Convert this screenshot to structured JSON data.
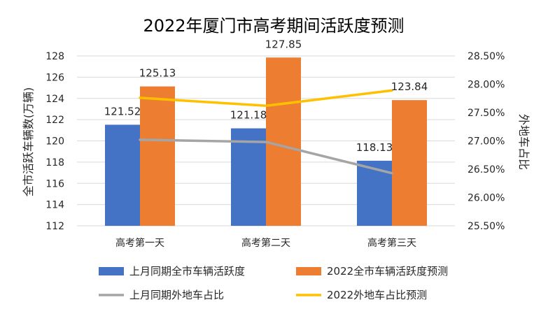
{
  "chart_data": {
    "type": "bar",
    "title": "2022年厦门市高考期间活跃度预测",
    "categories": [
      "高考第一天",
      "高考第二天",
      "高考第三天"
    ],
    "ylabel": "全市活跃车辆数(万辆)",
    "y2label": "外地车占比",
    "ylim": [
      112,
      128
    ],
    "y_ticks": [
      "112",
      "114",
      "116",
      "118",
      "120",
      "122",
      "124",
      "126",
      "128"
    ],
    "y2lim": [
      25.5,
      28.5
    ],
    "y2_ticks": [
      "25.50%",
      "26.00%",
      "26.50%",
      "27.00%",
      "27.50%",
      "28.00%",
      "28.50%"
    ],
    "grid": true,
    "legend_position": "bottom",
    "bar_series": [
      {
        "name": "上月同期全市车辆活跃度",
        "values": [
          121.52,
          121.18,
          118.13
        ],
        "labels": [
          "121.52",
          "121.18",
          "118.13"
        ],
        "color": "#4472C4"
      },
      {
        "name": "2022全市车辆活跃度预测",
        "values": [
          125.13,
          127.85,
          123.84
        ],
        "labels": [
          "125.13",
          "127.85",
          "123.84"
        ],
        "color": "#ED7D31"
      }
    ],
    "line_series": [
      {
        "name": "上月同期外地车占比",
        "values": [
          27.02,
          26.98,
          26.43
        ],
        "unit": "%",
        "axis": "right",
        "color": "#A5A5A5"
      },
      {
        "name": "2022外地车占比预测",
        "values": [
          27.76,
          27.62,
          27.89
        ],
        "unit": "%",
        "axis": "right",
        "color": "#FFC000"
      }
    ]
  }
}
